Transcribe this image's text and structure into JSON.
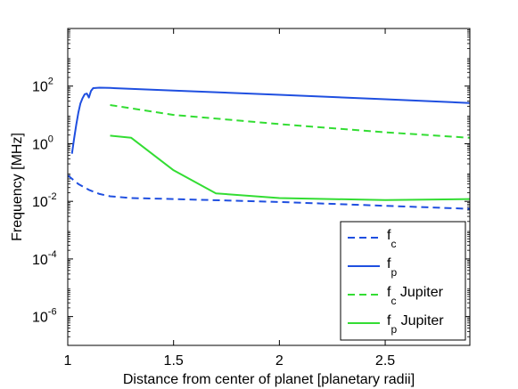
{
  "chart_data": {
    "type": "line",
    "xlabel": "Distance from center of planet [planetary radii]",
    "ylabel": "Frequency [MHz]",
    "xlim": [
      1,
      2.9
    ],
    "ylim": [
      1e-07,
      10000
    ],
    "yscale": "log",
    "grid": false,
    "legend_position": "bottom-right",
    "x_ticks": [
      {
        "value": 1,
        "label": "1"
      },
      {
        "value": 1.5,
        "label": "1.5"
      },
      {
        "value": 2,
        "label": "2"
      },
      {
        "value": 2.5,
        "label": "2.5"
      }
    ],
    "y_ticks": [
      {
        "exp": 2,
        "base": "10",
        "sup": "2"
      },
      {
        "exp": 0,
        "base": "10",
        "sup": "0"
      },
      {
        "exp": -2,
        "base": "10",
        "sup": "-2"
      },
      {
        "exp": -4,
        "base": "10",
        "sup": "-4"
      },
      {
        "exp": -6,
        "base": "10",
        "sup": "-6"
      }
    ],
    "series": [
      {
        "name": "f",
        "sub": "c",
        "suffix": "",
        "color": "#1f4fe0",
        "dash": "dashed",
        "points": [
          [
            1.0,
            0.08
          ],
          [
            1.05,
            0.04
          ],
          [
            1.1,
            0.025
          ],
          [
            1.15,
            0.018
          ],
          [
            1.2,
            0.015
          ],
          [
            1.3,
            0.013
          ],
          [
            1.5,
            0.012
          ],
          [
            2.0,
            0.0095
          ],
          [
            2.5,
            0.007
          ],
          [
            2.9,
            0.0055
          ]
        ]
      },
      {
        "name": "f",
        "sub": "p",
        "suffix": "",
        "color": "#1f4fe0",
        "dash": "solid",
        "points": [
          [
            1.02,
            0.45
          ],
          [
            1.03,
            1.5
          ],
          [
            1.04,
            4.5
          ],
          [
            1.05,
            12
          ],
          [
            1.06,
            25
          ],
          [
            1.07,
            38
          ],
          [
            1.08,
            52
          ],
          [
            1.09,
            55
          ],
          [
            1.1,
            40
          ],
          [
            1.11,
            68
          ],
          [
            1.12,
            85
          ],
          [
            1.15,
            88
          ],
          [
            1.2,
            86
          ],
          [
            1.5,
            70
          ],
          [
            2.0,
            50
          ],
          [
            2.5,
            35
          ],
          [
            2.9,
            26
          ]
        ]
      },
      {
        "name": "f",
        "sub": "c",
        "suffix": " Jupiter",
        "color": "#33dd33",
        "dash": "dashed",
        "points": [
          [
            1.2,
            22
          ],
          [
            1.5,
            10
          ],
          [
            2.0,
            4.8
          ],
          [
            2.5,
            2.5
          ],
          [
            2.9,
            1.6
          ]
        ]
      },
      {
        "name": "f",
        "sub": "p",
        "suffix": " Jupiter",
        "color": "#33dd33",
        "dash": "solid",
        "points": [
          [
            1.2,
            1.9
          ],
          [
            1.3,
            1.6
          ],
          [
            1.5,
            0.12
          ],
          [
            1.7,
            0.019
          ],
          [
            2.0,
            0.013
          ],
          [
            2.5,
            0.011
          ],
          [
            2.9,
            0.012
          ]
        ]
      }
    ]
  }
}
